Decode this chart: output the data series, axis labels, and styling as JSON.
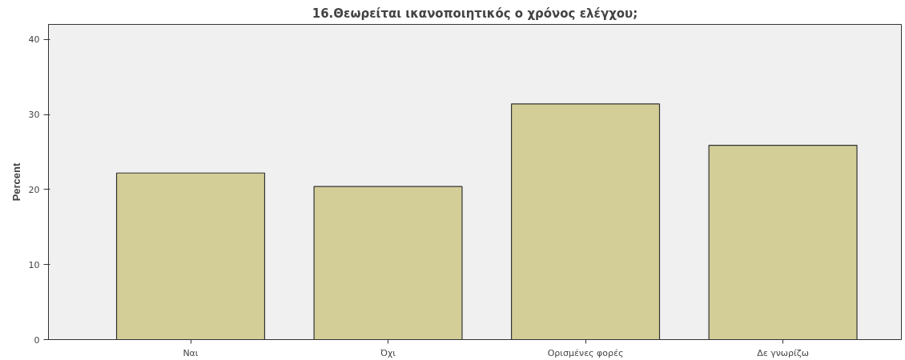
{
  "chart_data": {
    "type": "bar",
    "title": "16.Θεωρείται ικανοποιητικός ο χρόνος ελέγχου;",
    "ylabel": "Percent",
    "categories": [
      "Ναι",
      "Όχι",
      "Ορισμένες φορές",
      "Δε γνωρίζω"
    ],
    "values": [
      22.2,
      20.4,
      31.4,
      25.9
    ],
    "color": "#d3cd98",
    "ylim": [
      0,
      42
    ],
    "yticks": [
      0,
      10,
      20,
      30,
      40
    ],
    "grid": false
  }
}
